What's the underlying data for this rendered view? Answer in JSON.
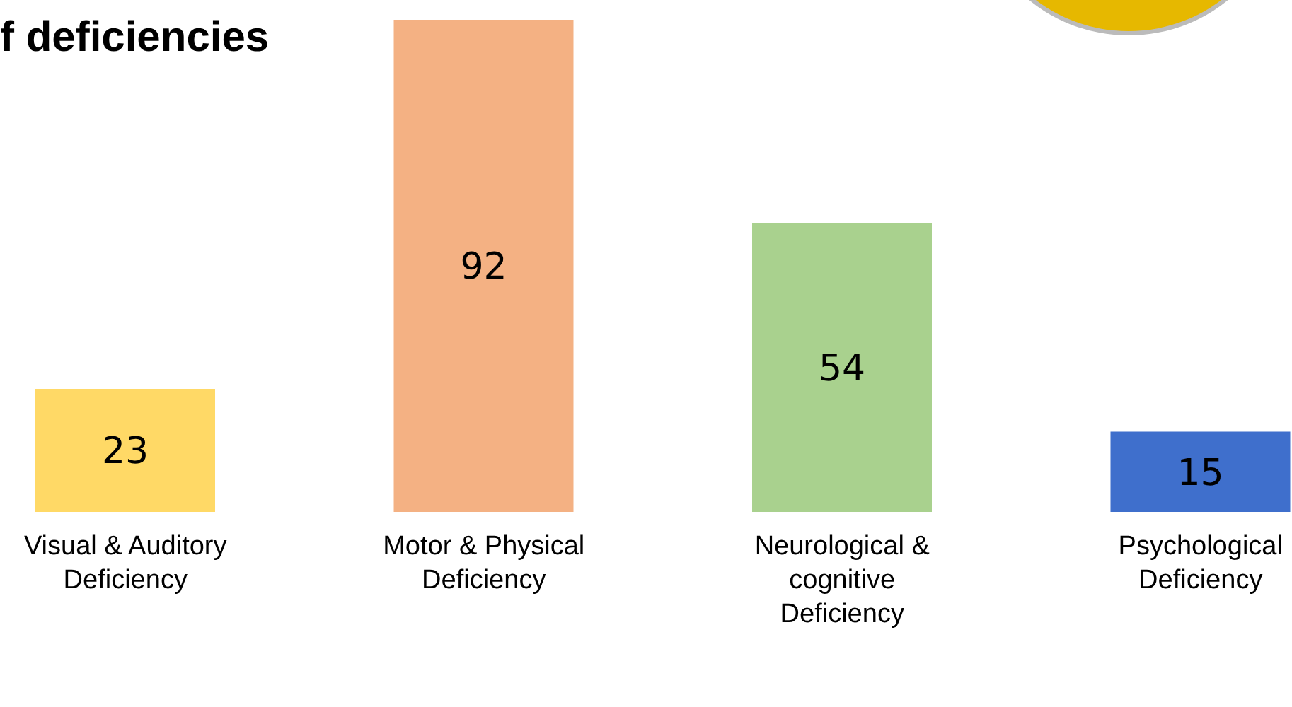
{
  "chart_data": {
    "type": "bar",
    "title": "f deficiencies",
    "categories": [
      "Visual & Auditory Deficiency",
      "Motor & Physical Deficiency",
      "Neurological & cognitive Deficiency",
      "Psychological Deficiency"
    ],
    "values": [
      23,
      92,
      54,
      15
    ],
    "colors": [
      "#ffd966",
      "#f4b183",
      "#a9d18e",
      "#3f6fcc"
    ],
    "data_labels": true,
    "tick_labels": "x",
    "grid": false,
    "legend": false
  }
}
